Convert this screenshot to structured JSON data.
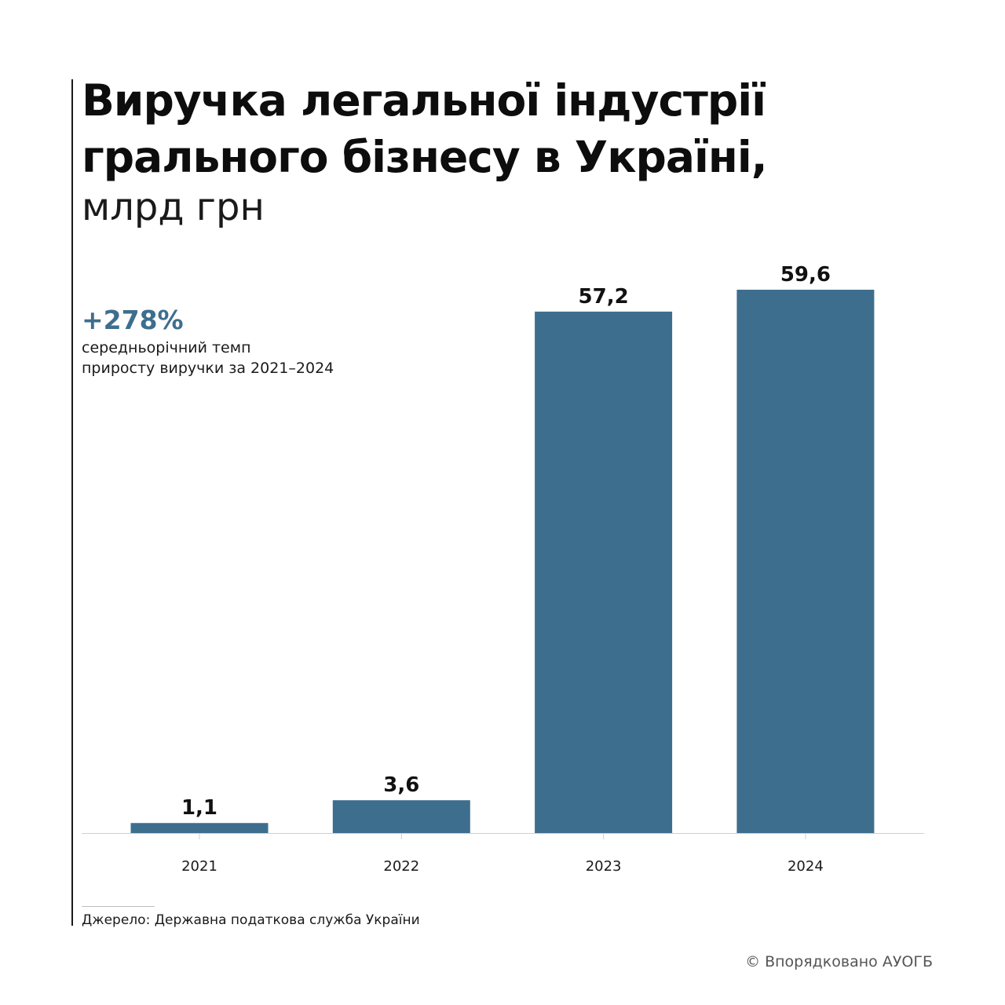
{
  "title_line1": "Виручка легальної індустрії",
  "title_line2": "грального бізнесу в Україні,",
  "subtitle": "млрд грн",
  "callout": {
    "value": "+278%",
    "text_line1": "середньорічний темп",
    "text_line2": "приросту виручки за 2021–2024"
  },
  "source": "Джерело: Державна податкова служба України",
  "credit": "© Впорядковано АУОГБ",
  "colors": {
    "bar": "#3e6e8e",
    "accent": "#3e6e8e",
    "text": "#111111"
  },
  "chart_data": {
    "type": "bar",
    "title": "Виручка легальної індустрії грального бізнесу в Україні,",
    "subtitle": "млрд грн",
    "categories": [
      "2021",
      "2022",
      "2023",
      "2024"
    ],
    "values": [
      1.1,
      3.6,
      57.2,
      59.6
    ],
    "value_labels": [
      "1,1",
      "3,6",
      "57,2",
      "59,6"
    ],
    "xlabel": "",
    "ylabel": "",
    "ylim": [
      0,
      59.6
    ],
    "grid": false,
    "legend": "none"
  }
}
